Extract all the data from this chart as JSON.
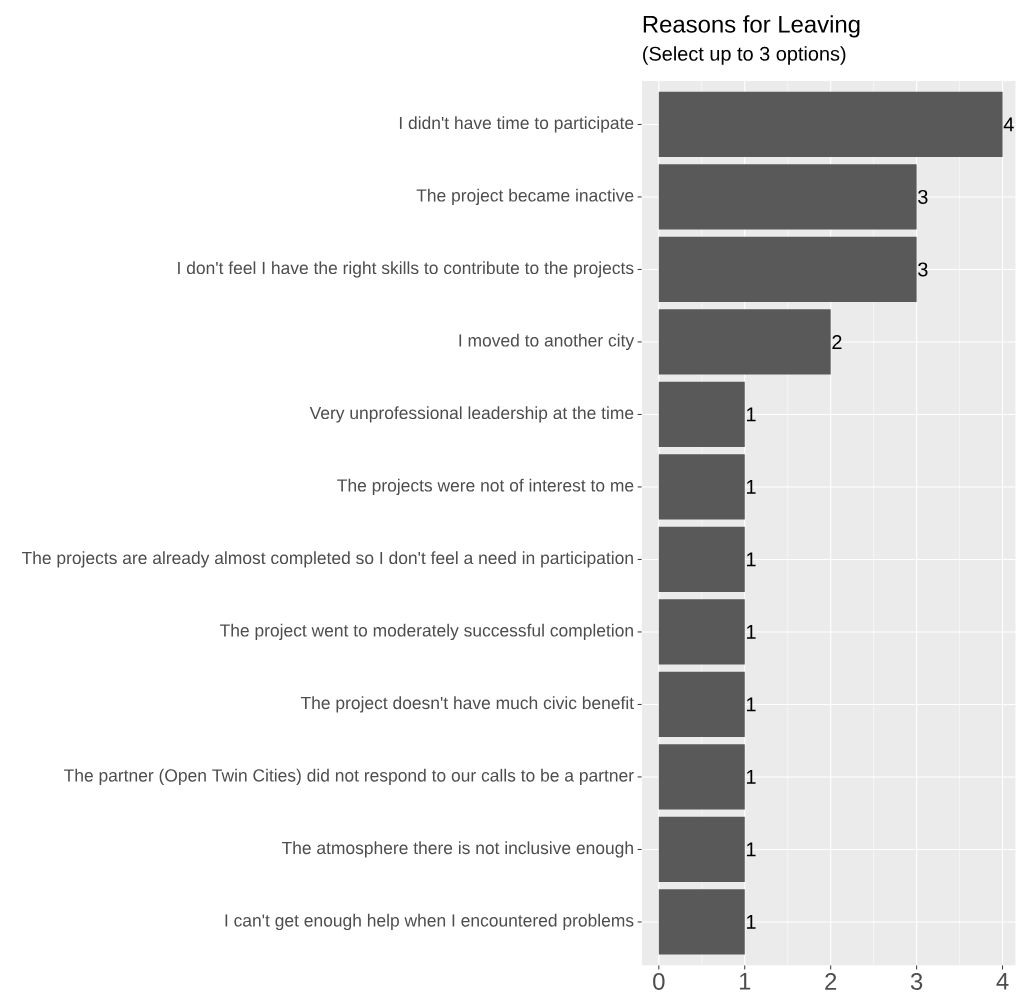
{
  "chart_data": {
    "type": "bar",
    "orientation": "horizontal",
    "title": "Reasons for Leaving",
    "subtitle": "(Select up to 3 options)",
    "categories": [
      "I didn't have time to participate",
      "The project became inactive",
      "I don't feel I have the right skills to contribute to the projects",
      "I moved to another city",
      "Very unprofessional leadership at the time",
      "The projects were not of interest to me",
      "The projects are already almost completed so I don't feel a need in participation",
      "The project went to moderately successful completion",
      "The project doesn't have much civic benefit",
      "The partner (Open Twin Cities) did not respond to our calls to be a partner",
      "The atmosphere there is not inclusive enough",
      "I can't get enough help when I encountered problems"
    ],
    "values": [
      4,
      3,
      3,
      2,
      1,
      1,
      1,
      1,
      1,
      1,
      1,
      1
    ],
    "color": "#595959",
    "data_labels": true,
    "grid": true,
    "xlim": [
      -0.2,
      4.15
    ],
    "xticks": [
      0,
      1,
      2,
      3,
      4
    ]
  }
}
